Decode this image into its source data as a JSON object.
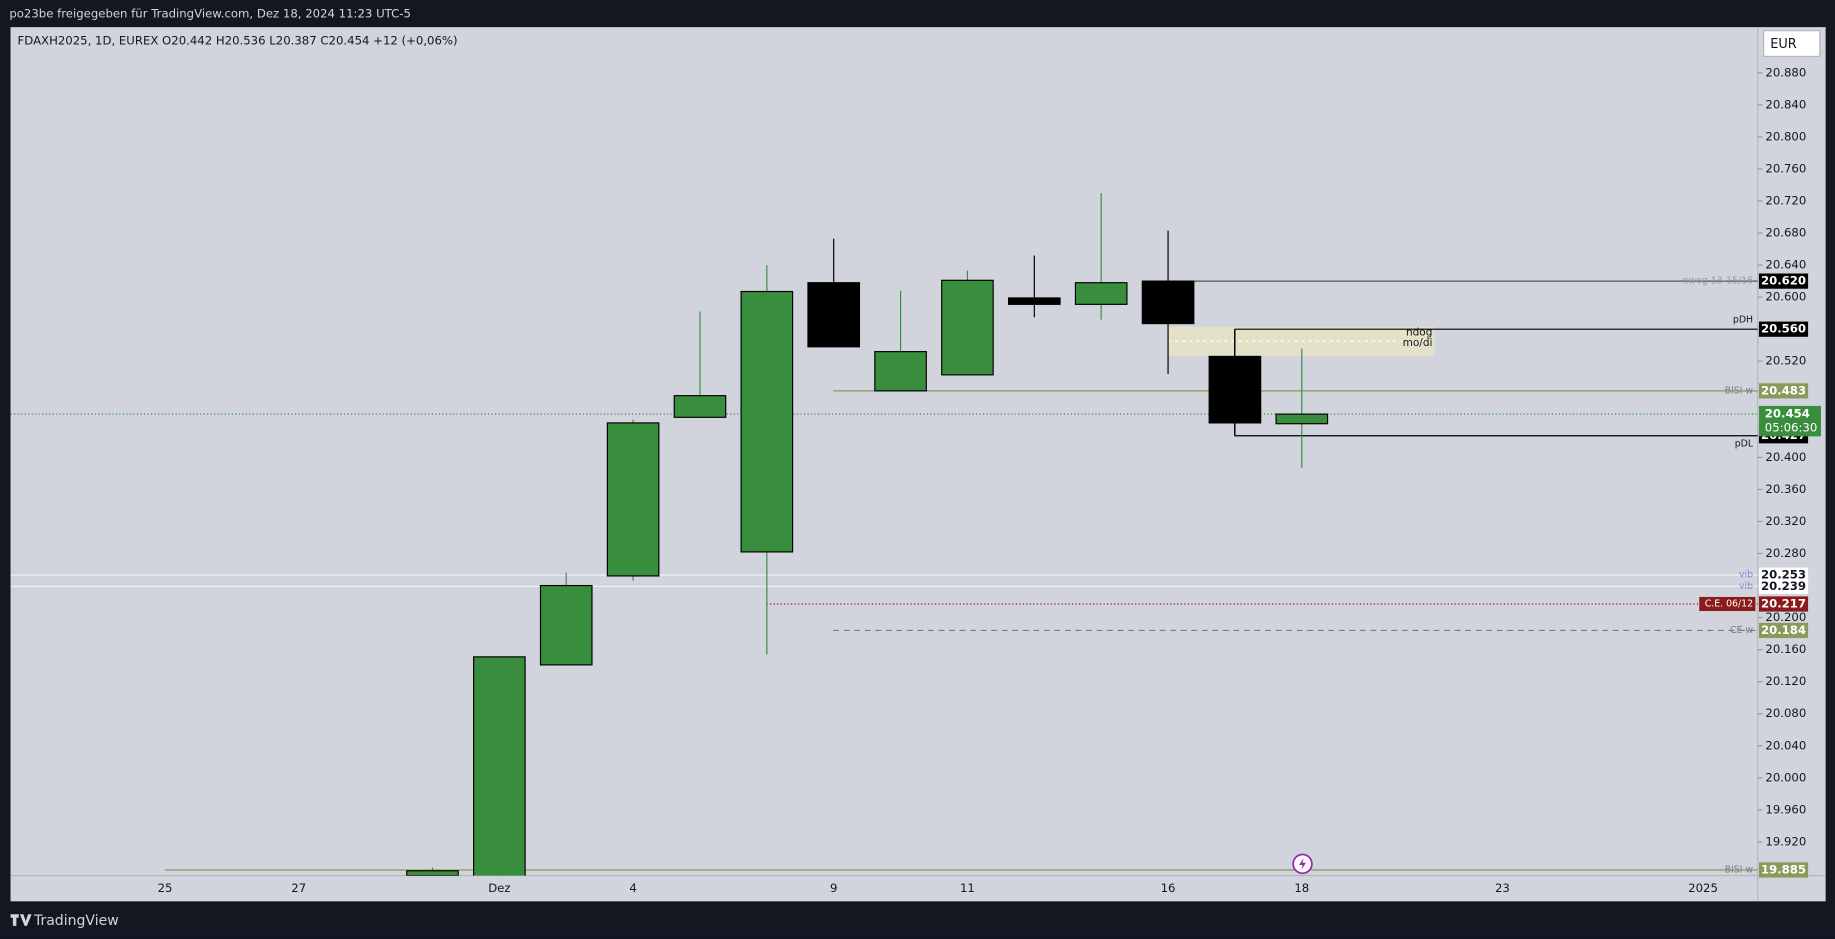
{
  "header": {
    "share_text": "po23be freigegeben für TradingView.com, Dez 18, 2024 11:23 UTC-5",
    "brand": "TradingView"
  },
  "chart_data": {
    "type": "candlestick",
    "symbol_line": "FDAXH2025, 1D, EUREX  O20.442  H20.536  L20.387  C20.454  +12 (+0,06%)",
    "currency": "EUR",
    "categories": [
      "25",
      null,
      "27",
      null,
      null,
      "Dez",
      null,
      "4",
      null,
      null,
      "9",
      null,
      "11",
      null,
      null,
      "16",
      null,
      "18",
      null,
      null,
      "23",
      null,
      null,
      "2025"
    ],
    "open": [
      null,
      null,
      null,
      null,
      19.878,
      19.87,
      20.141,
      20.252,
      20.45,
      20.282,
      20.618,
      20.483,
      20.503,
      20.599,
      20.591,
      20.62,
      20.526,
      20.442,
      null,
      null,
      null,
      null,
      null,
      null
    ],
    "high": [
      null,
      null,
      null,
      null,
      19.888,
      20.152,
      20.256,
      20.447,
      20.582,
      20.64,
      20.673,
      20.608,
      20.633,
      20.652,
      20.73,
      20.683,
      20.56,
      20.536,
      null,
      null,
      null,
      null,
      null,
      null
    ],
    "low": [
      null,
      null,
      null,
      null,
      19.876,
      19.865,
      20.141,
      20.246,
      20.45,
      20.154,
      20.538,
      20.483,
      20.503,
      20.575,
      20.572,
      20.504,
      20.427,
      20.387,
      null,
      null,
      null,
      null,
      null,
      null
    ],
    "close": [
      null,
      null,
      null,
      null,
      19.884,
      20.151,
      20.24,
      20.443,
      20.477,
      20.607,
      20.538,
      20.532,
      20.621,
      20.591,
      20.618,
      20.567,
      20.443,
      20.454,
      null,
      null,
      null,
      null,
      null,
      null
    ],
    "up_color": "#388e3c",
    "down_color": "#000000",
    "ylim": [
      19.878,
      20.937
    ],
    "yticks": [
      {
        "value": 20.88,
        "label": "20.880"
      },
      {
        "value": 20.84,
        "label": "20.840"
      },
      {
        "value": 20.8,
        "label": "20.800"
      },
      {
        "value": 20.76,
        "label": "20.760"
      },
      {
        "value": 20.72,
        "label": "20.720"
      },
      {
        "value": 20.68,
        "label": "20.680"
      },
      {
        "value": 20.64,
        "label": "20.640"
      },
      {
        "value": 20.6,
        "label": "20.600"
      },
      {
        "value": 20.52,
        "label": "20.520"
      },
      {
        "value": 20.4,
        "label": "20.400"
      },
      {
        "value": 20.36,
        "label": "20.360"
      },
      {
        "value": 20.32,
        "label": "20.320"
      },
      {
        "value": 20.28,
        "label": "20.280"
      },
      {
        "value": 20.2,
        "label": "20.200"
      },
      {
        "value": 20.16,
        "label": "20.160"
      },
      {
        "value": 20.12,
        "label": "20.120"
      },
      {
        "value": 20.08,
        "label": "20.080"
      },
      {
        "value": 20.04,
        "label": "20.040"
      },
      {
        "value": 20,
        "label": "20.000"
      },
      {
        "value": 19.96,
        "label": "19.960"
      },
      {
        "value": 19.92,
        "label": "19.920"
      }
    ],
    "levels": [
      {
        "name": "nwog 13-15/16",
        "value": 20.62,
        "value_label": "20.620",
        "line_color": "#555555",
        "style": "solid",
        "badge_color": "#000000",
        "text_color": "#ffffff",
        "name_color": "#9598a1"
      },
      {
        "name": "pDH",
        "value": 20.56,
        "value_label": "20.560",
        "line_color": "#000000",
        "style": "solid",
        "badge_color": "#000000",
        "text_color": "#ffffff",
        "name_color": "#131722"
      },
      {
        "name": "BISI w",
        "value": 20.483,
        "value_label": "20.483",
        "line_color": "#8a9a5b",
        "style": "solid",
        "badge_color": "#8a9a5b",
        "text_color": "#ffffff",
        "name_color": "#787b86"
      },
      {
        "name": "pDL",
        "value": 20.427,
        "value_label": "20.427",
        "line_color": "#000000",
        "style": "solid",
        "badge_color": "#000000",
        "text_color": "#ffffff",
        "name_color": "#131722"
      },
      {
        "name": "vib",
        "value": 20.253,
        "value_label": "20.253",
        "line_color": "#eef0f5",
        "style": "solid",
        "badge_color": "#ffffff",
        "text_color": "#131722",
        "name_color": "#7b8bd6"
      },
      {
        "name": "vib",
        "value": 20.239,
        "value_label": "20.239",
        "line_color": "#eef0f5",
        "style": "solid",
        "badge_color": "#ffffff",
        "text_color": "#131722",
        "name_color": "#7b8bd6"
      },
      {
        "name": "C.E. 06/12",
        "value": 20.217,
        "value_label": "20.217",
        "line_color": "#8b1a1a",
        "style": "dotted",
        "badge_color": "#8b1a1a",
        "text_color": "#ffffff",
        "name_color": "#ffffff"
      },
      {
        "name": "CE w",
        "value": 20.184,
        "value_label": "20.184",
        "line_color": "#787b86",
        "style": "dashed",
        "badge_color": "#8a9a5b",
        "text_color": "#ffffff",
        "name_color": "#787b86"
      },
      {
        "name": "BISI w",
        "value": 19.885,
        "value_label": "19.885",
        "line_color": "#8a9a5b",
        "style": "solid",
        "badge_color": "#8a9a5b",
        "text_color": "#ffffff",
        "name_color": "#787b86"
      }
    ],
    "zone": {
      "top": 20.563,
      "bottom": 20.527,
      "labels": [
        "ndog",
        "mo/di"
      ],
      "color": "#e6e2c6"
    },
    "last_price": {
      "value": 20.454,
      "label": "20.454",
      "countdown": "05:06:30",
      "color": "#388e3c"
    }
  }
}
